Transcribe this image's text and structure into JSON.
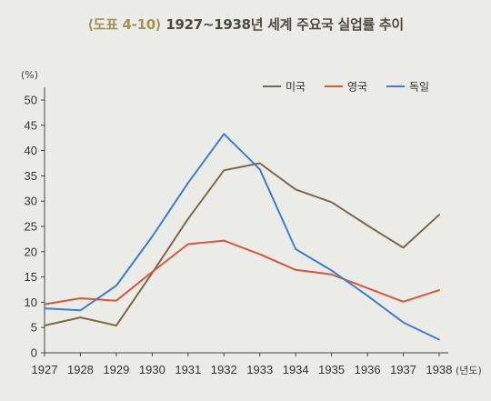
{
  "figure": {
    "label": "⟨도표 4-10⟩",
    "title": "1927~1938년 세계 주요국 실업률 추이"
  },
  "chart_data": {
    "type": "line",
    "ylabel": "(%)",
    "xlabel": "(년도)",
    "x": [
      "1927",
      "1928",
      "1929",
      "1930",
      "1931",
      "1932",
      "1933",
      "1934",
      "1935",
      "1936",
      "1937",
      "1938"
    ],
    "ylim": [
      0,
      50
    ],
    "yticks": [
      0,
      5,
      10,
      15,
      20,
      25,
      30,
      35,
      40,
      45,
      50
    ],
    "legend_position": "top-right",
    "grid": false,
    "series": [
      {
        "name": "미국",
        "color": "#7d6a45",
        "values": [
          5.4,
          7.0,
          5.4,
          15.8,
          26.5,
          36.1,
          37.5,
          32.3,
          29.8,
          25.2,
          20.8,
          27.3
        ]
      },
      {
        "name": "영국",
        "color": "#d4593a",
        "values": [
          9.6,
          10.8,
          10.3,
          16.0,
          21.5,
          22.2,
          19.5,
          16.4,
          15.5,
          12.8,
          10.1,
          12.4
        ]
      },
      {
        "name": "독일",
        "color": "#3d7fcc",
        "values": [
          8.8,
          8.4,
          13.3,
          23.0,
          33.6,
          43.3,
          36.3,
          20.5,
          16.3,
          11.3,
          6.0,
          2.6
        ]
      }
    ]
  }
}
